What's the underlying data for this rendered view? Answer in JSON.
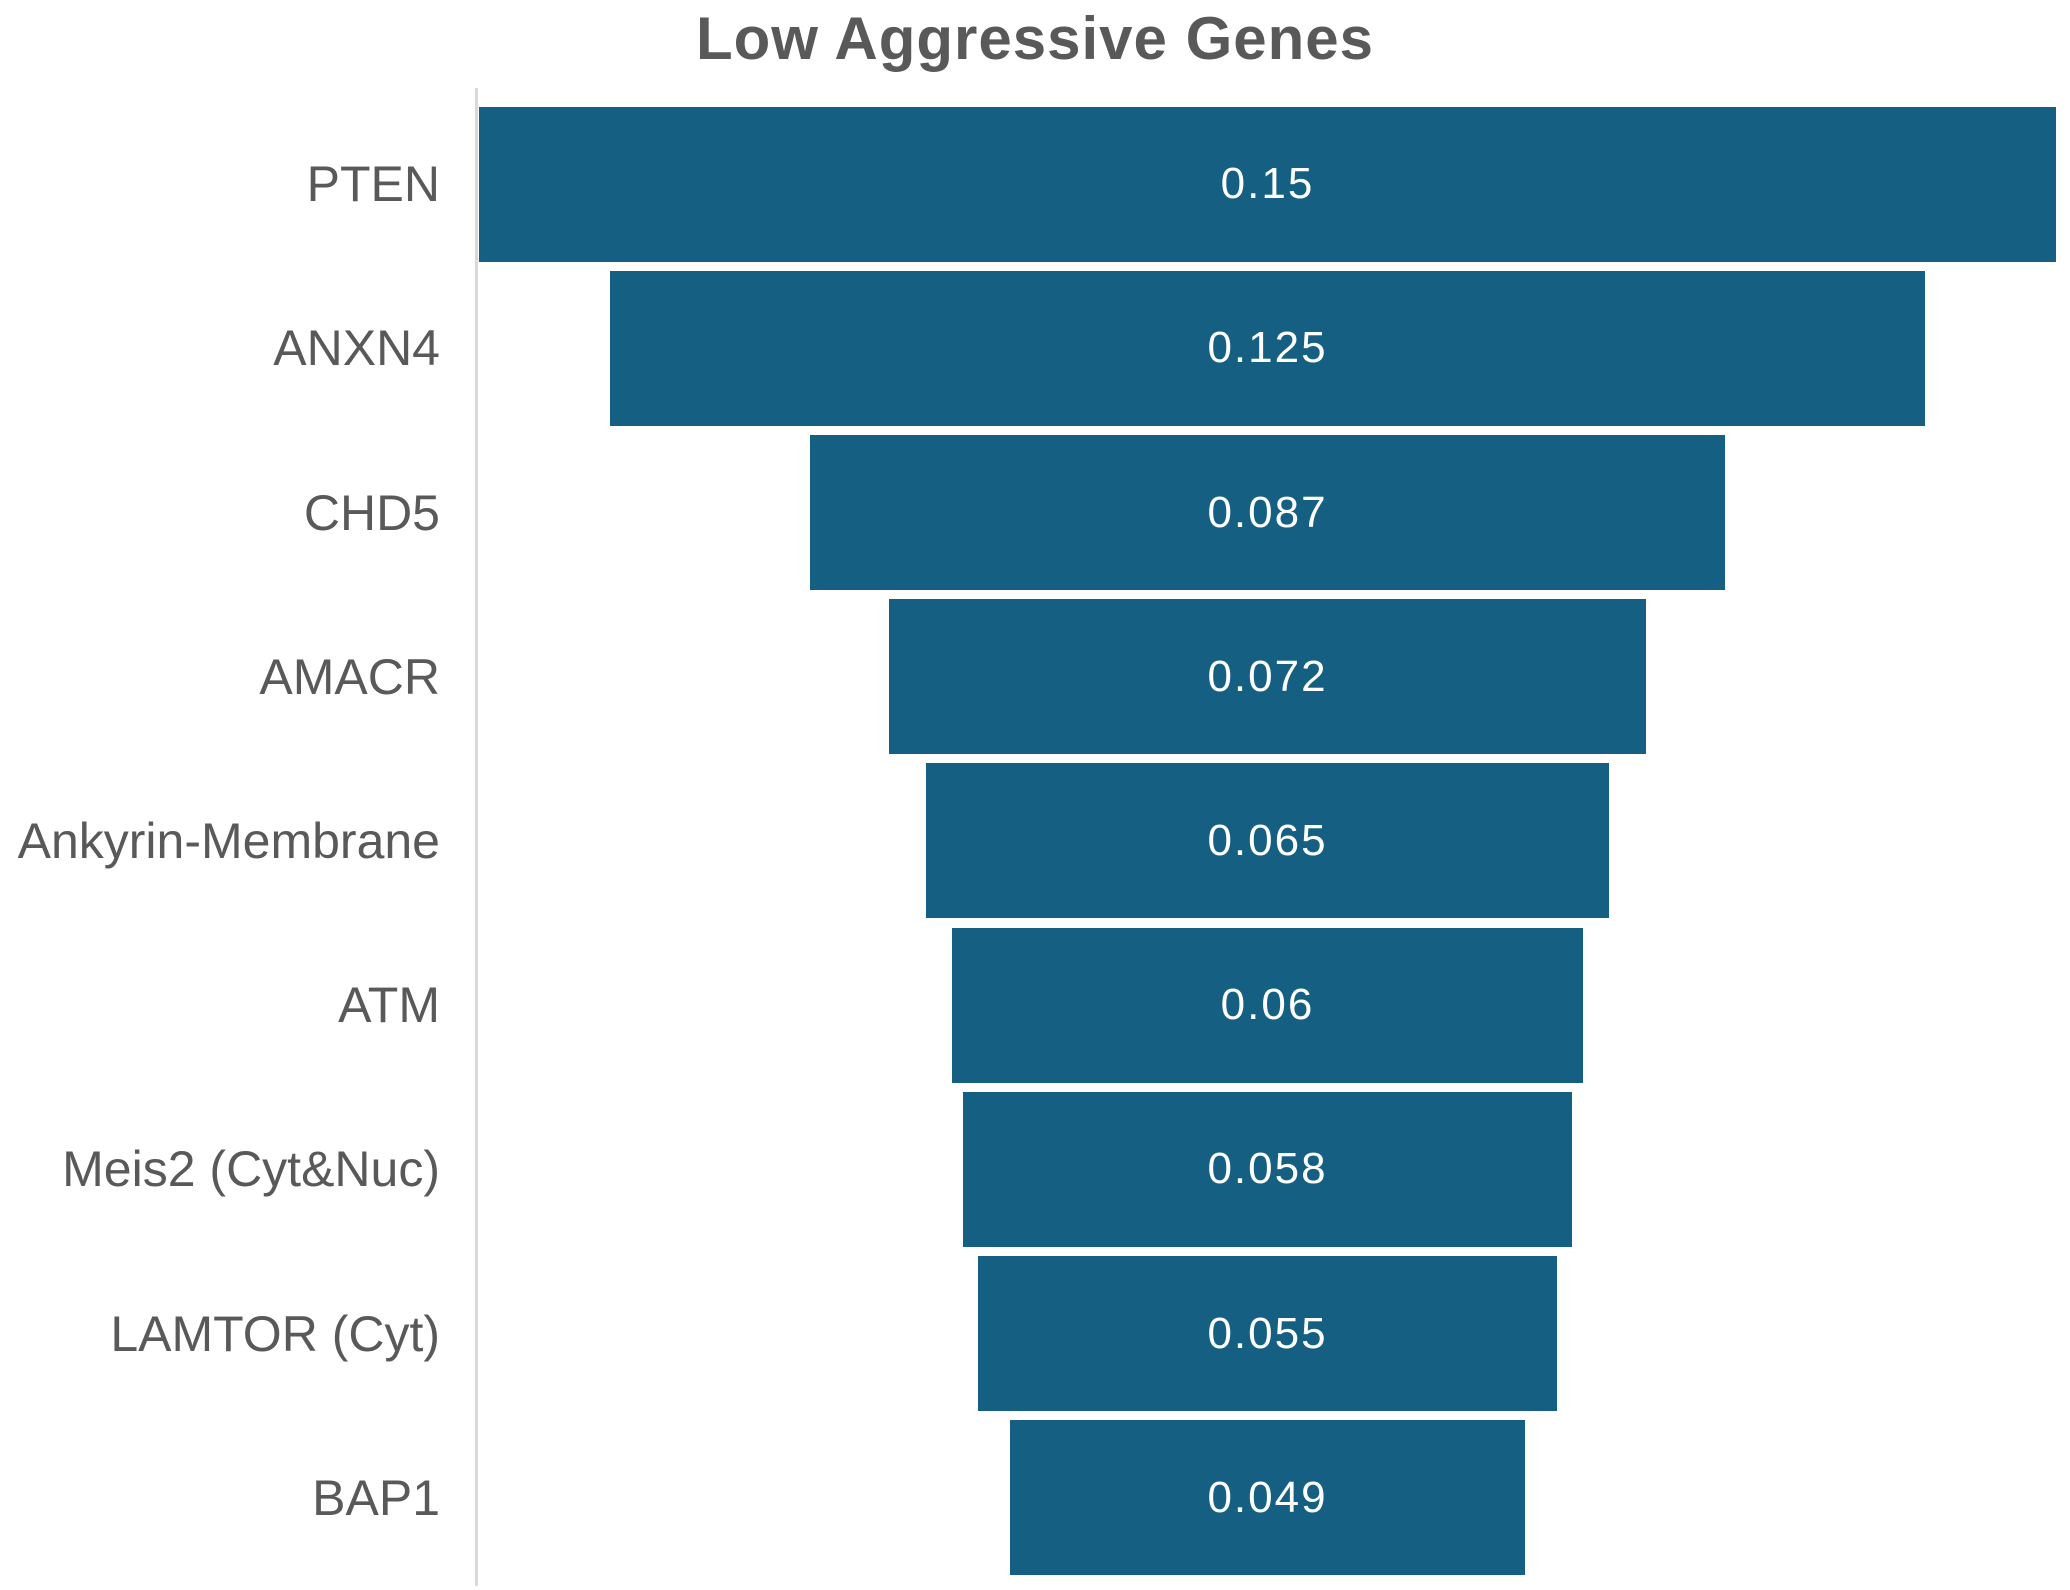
{
  "title": "Low Aggressive Genes",
  "chart_data": {
    "type": "bar",
    "subtype": "funnel-horizontal-centered",
    "title": "Low Aggressive Genes",
    "categories": [
      "PTEN",
      "ANXN4",
      "CHD5",
      "AMACR",
      "Ankyrin-Membrane",
      "ATM",
      "Meis2 (Cyt&Nuc)",
      "LAMTOR (Cyt)",
      "BAP1"
    ],
    "values": [
      0.15,
      0.125,
      0.087,
      0.072,
      0.065,
      0.06,
      0.058,
      0.055,
      0.049
    ],
    "value_labels": [
      "0.15",
      "0.125",
      "0.087",
      "0.072",
      "0.065",
      "0.06",
      "0.058",
      "0.055",
      "0.049"
    ],
    "xlabel": "",
    "ylabel": "",
    "xlim": [
      0,
      0.15
    ],
    "grid": false,
    "legend": false,
    "value_label_position": "inside-center",
    "category_label_position": "left-right-aligned",
    "colors": {
      "bar": "#156082",
      "title": "#595959",
      "category_label": "#595959",
      "value_text": "#ffffff",
      "axis_line": "#d9d9d9",
      "background": "#ffffff"
    }
  }
}
